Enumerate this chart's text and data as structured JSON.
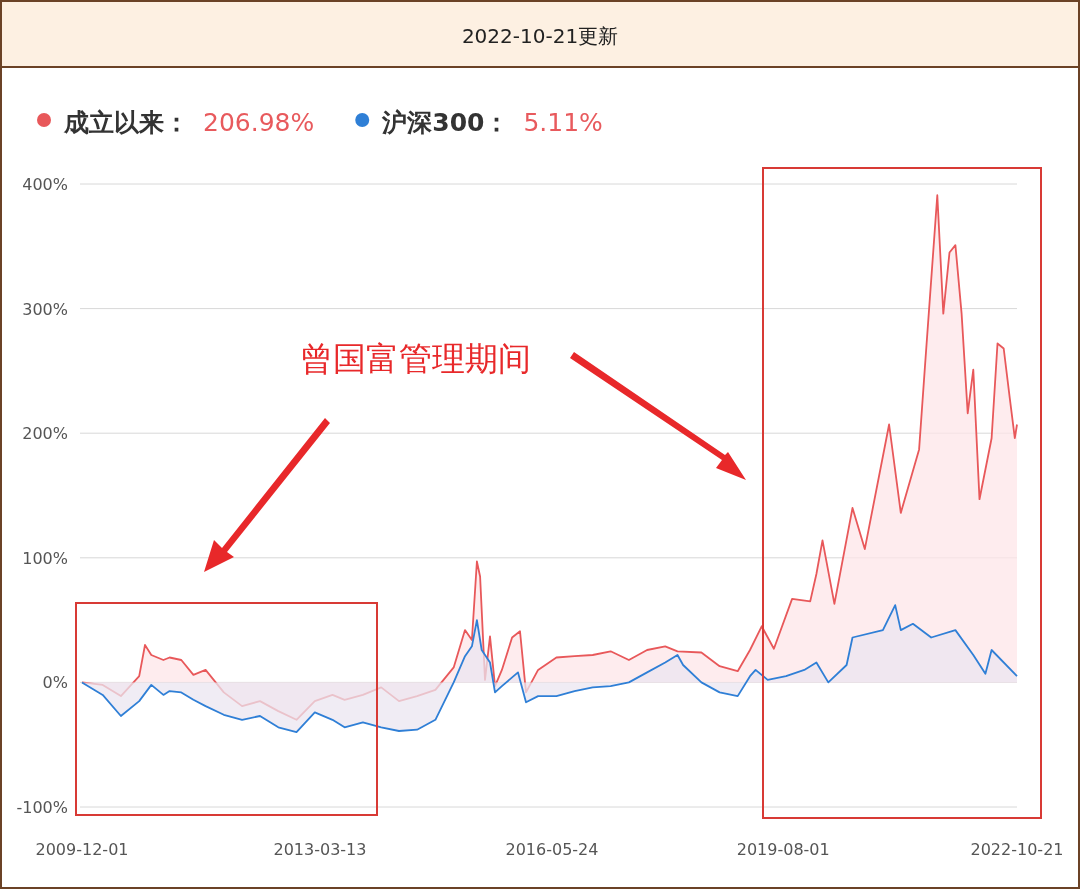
{
  "chart_data": {
    "type": "area",
    "title": "2022-10-21更新",
    "xlim": [
      "2009-12-01",
      "2022-10-21"
    ],
    "xticks": [
      "2009-12-01",
      "2013-03-13",
      "2016-05-24",
      "2019-08-01",
      "2022-10-21"
    ],
    "ylim": [
      -100,
      400
    ],
    "yticks": [
      {
        "value": -100,
        "label": "-100%"
      },
      {
        "value": 0,
        "label": "0%"
      },
      {
        "value": 100,
        "label": "100%"
      },
      {
        "value": 200,
        "label": "200%"
      },
      {
        "value": 300,
        "label": "300%"
      },
      {
        "value": 400,
        "label": "400%"
      }
    ],
    "grid": "y",
    "legend": "top left",
    "marker": "none",
    "series": [
      {
        "name": "成立以来：",
        "color": "#e8585a",
        "x": [
          "2009-12-01",
          "2010-03",
          "2010-06",
          "2010-09",
          "2010-10-14",
          "2010-11",
          "2011-01",
          "2011-02",
          "2011-04",
          "2011-06",
          "2011-08",
          "2011-11",
          "2012-02",
          "2012-05",
          "2012-08",
          "2012-11",
          "2013-02",
          "2013-05",
          "2013-07",
          "2013-10",
          "2014-01",
          "2014-04",
          "2014-07",
          "2014-10",
          "2015-01",
          "2015-03-13",
          "2015-04-17",
          "2015-05-12",
          "2015-05-28",
          "2015-06-22",
          "2015-07-17",
          "2015-08-11",
          "2015-09-15",
          "2015-11-05",
          "2015-12-15",
          "2016-01-14",
          "2016-03",
          "2016-06",
          "2016-09",
          "2016-12",
          "2017-03",
          "2017-06",
          "2017-09",
          "2017-12",
          "2018-02",
          "2018-06",
          "2018-09",
          "2018-12",
          "2019-02",
          "2019-04",
          "2019-06",
          "2019-09",
          "2019-12",
          "2020-01",
          "2020-02",
          "2020-04",
          "2020-07",
          "2020-09",
          "2021-01",
          "2021-03",
          "2021-06",
          "2021-07",
          "2021-09",
          "2021-10",
          "2021-11",
          "2021-12",
          "2022-01",
          "2022-02",
          "2022-03",
          "2022-04",
          "2022-06",
          "2022-07",
          "2022-08",
          "2022-09",
          "2022-10-10",
          "2022-10-21"
        ],
        "values": [
          0,
          -2,
          -11,
          5,
          30,
          22,
          18,
          20,
          18,
          6,
          10,
          -8,
          -19,
          -15,
          -23,
          -30,
          -15,
          -10,
          -14,
          -10,
          -4,
          -15,
          -11,
          -6,
          12,
          42,
          34,
          97,
          85,
          2,
          37,
          -3,
          10,
          36,
          41,
          -8,
          10,
          20,
          21,
          22,
          25,
          18,
          26,
          29,
          25,
          24,
          13,
          9,
          26,
          45,
          27,
          67,
          65,
          87,
          114,
          63,
          140,
          107,
          207,
          136,
          187,
          254,
          391,
          296,
          345,
          351,
          296,
          216,
          251,
          147,
          196,
          272,
          268,
          228,
          196,
          207
        ]
      },
      {
        "name": "沪深300：",
        "color": "#2f7fd6",
        "x": [
          "2009-12-01",
          "2010-03",
          "2010-06",
          "2010-09",
          "2010-11",
          "2011-01",
          "2011-02",
          "2011-04",
          "2011-06",
          "2011-08",
          "2011-11",
          "2012-02",
          "2012-05",
          "2012-08",
          "2012-11",
          "2013-02",
          "2013-05",
          "2013-07",
          "2013-10",
          "2014-01",
          "2014-04",
          "2014-07",
          "2014-10",
          "2015-01",
          "2015-03-13",
          "2015-04-17",
          "2015-05-12",
          "2015-06-05",
          "2015-07-17",
          "2015-08-11",
          "2015-09-15",
          "2015-12-05",
          "2016-01-14",
          "2016-03",
          "2016-06",
          "2016-09",
          "2016-12",
          "2017-03",
          "2017-06",
          "2017-09",
          "2017-12",
          "2018-02",
          "2018-03",
          "2018-06",
          "2018-09",
          "2018-12",
          "2019-02",
          "2019-03",
          "2019-05",
          "2019-08",
          "2019-11",
          "2020-01",
          "2020-03",
          "2020-06",
          "2020-07",
          "2020-12",
          "2021-02",
          "2021-03",
          "2021-05",
          "2021-08",
          "2021-12",
          "2022-03",
          "2022-05",
          "2022-06",
          "2022-10-21"
        ],
        "values": [
          0,
          -10,
          -27,
          -15,
          -2,
          -10,
          -7,
          -8,
          -14,
          -19,
          -26,
          -30,
          -27,
          -36,
          -40,
          -24,
          -30,
          -36,
          -32,
          -36,
          -39,
          -38,
          -30,
          0,
          21,
          29,
          50,
          26,
          16,
          -8,
          -3,
          8,
          -16,
          -11,
          -11,
          -7,
          -4,
          -3,
          0,
          8,
          16,
          22,
          14,
          0,
          -8,
          -11,
          5,
          10,
          2,
          5,
          10,
          16,
          0,
          14,
          36,
          42,
          62,
          42,
          47,
          36,
          42,
          22,
          7,
          26,
          5
        ]
      }
    ],
    "annotations": [
      "206.98%",
      "5.11%",
      "曾国富管理期间"
    ]
  }
}
